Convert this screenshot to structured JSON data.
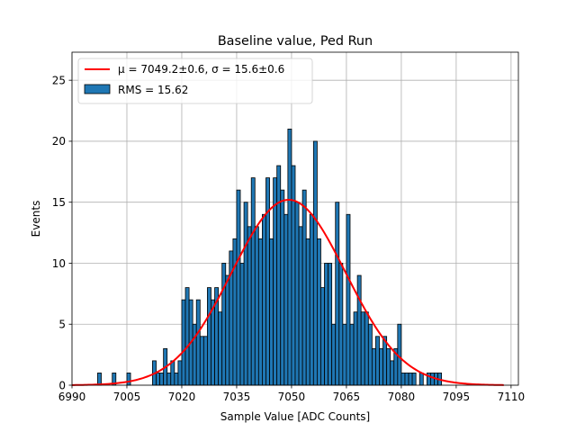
{
  "chart_data": {
    "type": "bar",
    "title": "Baseline value, Ped Run",
    "xlabel": "Sample Value [ADC Counts]",
    "ylabel": "Events",
    "xlim": [
      6990,
      7112
    ],
    "ylim": [
      0,
      27.3
    ],
    "xticks": [
      6990,
      7005,
      7020,
      7035,
      7050,
      7065,
      7080,
      7095,
      7110
    ],
    "yticks": [
      0,
      5,
      10,
      15,
      20,
      25
    ],
    "grid": true,
    "legend_position": "top-left",
    "bin_width": 1,
    "histogram": {
      "name": "RMS = 15.62",
      "color": "#1f77b4",
      "bins": [
        [
          6997,
          1
        ],
        [
          7001,
          1
        ],
        [
          7005,
          1
        ],
        [
          7012,
          2
        ],
        [
          7013,
          1
        ],
        [
          7014,
          1
        ],
        [
          7015,
          3
        ],
        [
          7016,
          1
        ],
        [
          7017,
          2
        ],
        [
          7018,
          1
        ],
        [
          7019,
          2
        ],
        [
          7020,
          7
        ],
        [
          7021,
          8
        ],
        [
          7022,
          7
        ],
        [
          7023,
          5
        ],
        [
          7024,
          7
        ],
        [
          7025,
          4
        ],
        [
          7026,
          4
        ],
        [
          7027,
          8
        ],
        [
          7028,
          7
        ],
        [
          7029,
          8
        ],
        [
          7030,
          6
        ],
        [
          7031,
          10
        ],
        [
          7032,
          9
        ],
        [
          7033,
          11
        ],
        [
          7034,
          12
        ],
        [
          7035,
          16
        ],
        [
          7036,
          10
        ],
        [
          7037,
          15
        ],
        [
          7038,
          13
        ],
        [
          7039,
          17
        ],
        [
          7040,
          13
        ],
        [
          7041,
          12
        ],
        [
          7042,
          14
        ],
        [
          7043,
          17
        ],
        [
          7044,
          12
        ],
        [
          7045,
          17
        ],
        [
          7046,
          18
        ],
        [
          7047,
          16
        ],
        [
          7048,
          14
        ],
        [
          7049,
          21
        ],
        [
          7050,
          18
        ],
        [
          7051,
          15
        ],
        [
          7052,
          13
        ],
        [
          7053,
          16
        ],
        [
          7054,
          12
        ],
        [
          7055,
          14
        ],
        [
          7056,
          20
        ],
        [
          7057,
          12
        ],
        [
          7058,
          8
        ],
        [
          7059,
          10
        ],
        [
          7060,
          10
        ],
        [
          7061,
          5
        ],
        [
          7062,
          15
        ],
        [
          7063,
          10
        ],
        [
          7064,
          5
        ],
        [
          7065,
          14
        ],
        [
          7066,
          5
        ],
        [
          7067,
          6
        ],
        [
          7068,
          9
        ],
        [
          7069,
          6
        ],
        [
          7070,
          6
        ],
        [
          7071,
          5
        ],
        [
          7072,
          3
        ],
        [
          7073,
          4
        ],
        [
          7074,
          3
        ],
        [
          7075,
          4
        ],
        [
          7076,
          3
        ],
        [
          7077,
          2
        ],
        [
          7078,
          3
        ],
        [
          7079,
          5
        ],
        [
          7080,
          1
        ],
        [
          7081,
          1
        ],
        [
          7082,
          1
        ],
        [
          7083,
          1
        ],
        [
          7085,
          1
        ],
        [
          7087,
          1
        ],
        [
          7088,
          1
        ],
        [
          7089,
          1
        ],
        [
          7090,
          1
        ]
      ]
    },
    "fit": {
      "name": "μ = 7049.2±0.6, σ = 15.6±0.6",
      "color": "#ff0000",
      "mu": 7049.2,
      "sigma": 15.6,
      "amplitude": 15.2,
      "x_range": [
        6990,
        7108
      ]
    }
  }
}
